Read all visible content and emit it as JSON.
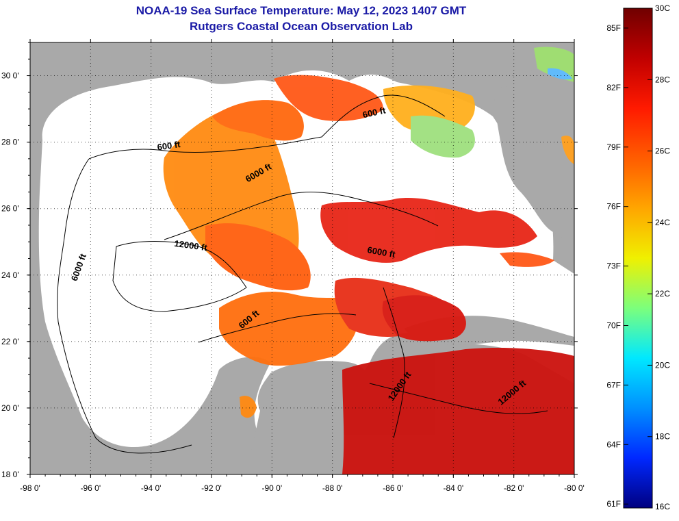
{
  "title_line1": "NOAA-19 Sea Surface Temperature:  May 12, 2023 1407 GMT",
  "title_line2": "Rutgers Coastal Ocean Observation Lab",
  "colors": {
    "land": "#a9a9a9",
    "no_data": "#ffffff",
    "title": "#1a1aa6",
    "grid": "#000000"
  },
  "map": {
    "lon_range": [
      -98,
      -80
    ],
    "lat_range": [
      18,
      31
    ],
    "x_ticks": [
      {
        "value": -98,
        "label": "-98 0'"
      },
      {
        "value": -96,
        "label": "-96 0'"
      },
      {
        "value": -94,
        "label": "-94 0'"
      },
      {
        "value": -92,
        "label": "-92 0'"
      },
      {
        "value": -90,
        "label": "-90 0'"
      },
      {
        "value": -88,
        "label": "-88 0'"
      },
      {
        "value": -86,
        "label": "-86 0'"
      },
      {
        "value": -84,
        "label": "-84 0'"
      },
      {
        "value": -82,
        "label": "-82 0'"
      },
      {
        "value": -80,
        "label": "-80 0'"
      }
    ],
    "y_ticks": [
      {
        "value": 30,
        "label": "30 0'"
      },
      {
        "value": 28,
        "label": "28 0'"
      },
      {
        "value": 26,
        "label": "26 0'"
      },
      {
        "value": 24,
        "label": "24 0'"
      },
      {
        "value": 22,
        "label": "22 0'"
      },
      {
        "value": 20,
        "label": "20 0'"
      },
      {
        "value": 18,
        "label": "18 0'"
      }
    ],
    "contour_labels": [
      {
        "text": "600 ft",
        "lon": -93.4,
        "lat": 27.8
      },
      {
        "text": "600 ft",
        "lon": -86.6,
        "lat": 28.8
      },
      {
        "text": "6000 ft",
        "lon": -90.4,
        "lat": 27.0
      },
      {
        "text": "12000 ft",
        "lon": -92.7,
        "lat": 24.8
      },
      {
        "text": "6000 ft",
        "lon": -96.3,
        "lat": 24.2
      },
      {
        "text": "6000 ft",
        "lon": -86.4,
        "lat": 24.6
      },
      {
        "text": "600 ft",
        "lon": -90.7,
        "lat": 22.6
      },
      {
        "text": "12000 ft",
        "lon": -85.7,
        "lat": 20.6
      },
      {
        "text": "12000 ft",
        "lon": -82.0,
        "lat": 20.4
      }
    ]
  },
  "colorbar": {
    "min_c": 16,
    "max_c": 30,
    "celsius_labels": [
      "30C",
      "28C",
      "26C",
      "24C",
      "22C",
      "20C",
      "18C",
      "16C"
    ],
    "fahrenheit_labels": [
      "85F",
      "82F",
      "79F",
      "76F",
      "73F",
      "70F",
      "67F",
      "64F",
      "61F"
    ],
    "gradient_colors": [
      "#800000",
      "#c80000",
      "#ff2000",
      "#ff7800",
      "#ffb000",
      "#ffff00",
      "#80ff80",
      "#00ffff",
      "#0090ff",
      "#0030ff",
      "#000090"
    ]
  }
}
